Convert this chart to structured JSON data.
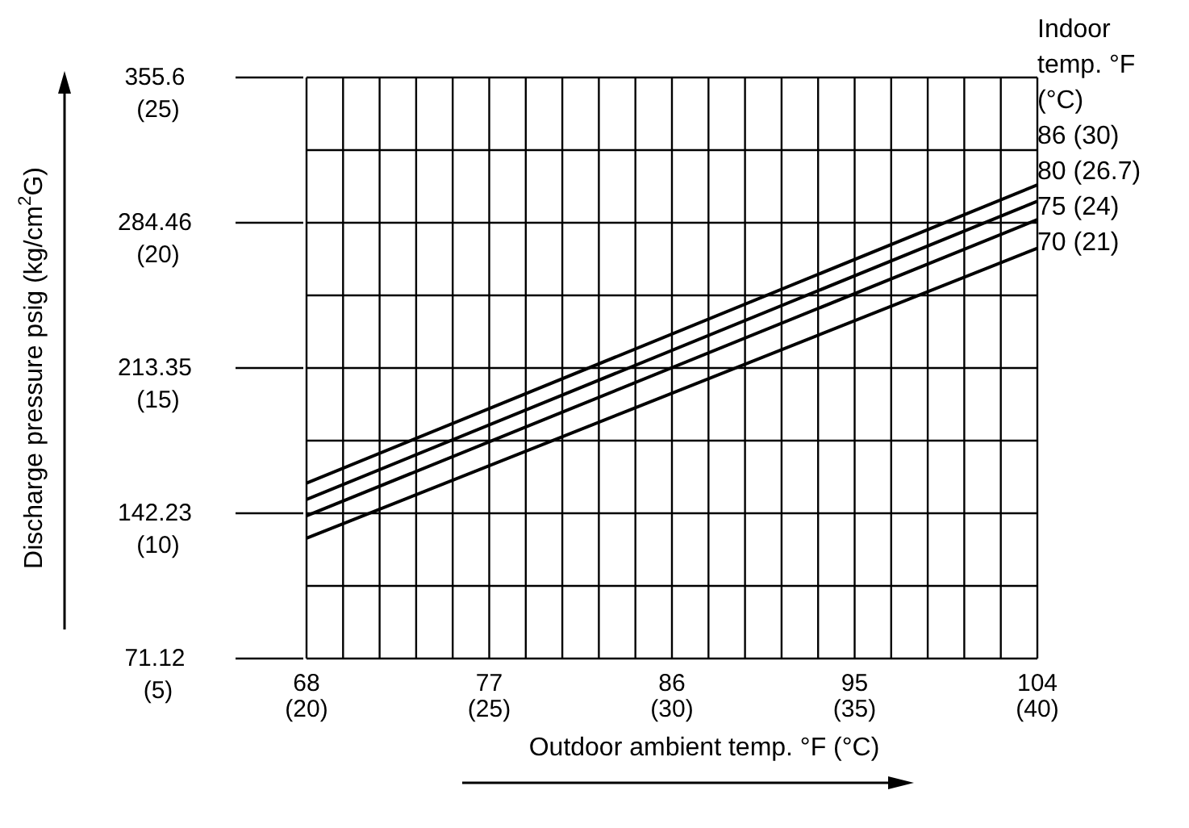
{
  "chart_data": {
    "type": "line",
    "xlabel": "Outdoor ambient temp. °F (°C)",
    "ylabel": "Discharge pressure psig (kg/cm$^{2}$G)",
    "legend_title": "Indoor temp. °F (°C)",
    "x": [
      68,
      104
    ],
    "series": [
      {
        "name": "86 (30)",
        "color": "#000000",
        "values": [
          157,
          303
        ]
      },
      {
        "name": "80 (26.7)",
        "color": "#000000",
        "values": [
          149,
          295
        ]
      },
      {
        "name": "75 (24)",
        "color": "#000000",
        "values": [
          141,
          286
        ]
      },
      {
        "name": "70 (21)",
        "color": "#000000",
        "values": [
          130,
          272
        ]
      }
    ],
    "xlim": [
      68,
      104
    ],
    "xticks": [
      68,
      {
        "value": 69.8,
        "label": null
      },
      {
        "value": 71.6,
        "label": null
      },
      {
        "value": 73.4,
        "label": null
      },
      {
        "value": 75.2,
        "label": null
      },
      77,
      {
        "value": 78.8,
        "label": null
      },
      {
        "value": 80.6,
        "label": null
      },
      {
        "value": 82.4,
        "label": null
      },
      {
        "value": 84.2,
        "label": null
      },
      86,
      {
        "value": 87.8,
        "label": null
      },
      {
        "value": 89.6,
        "label": null
      },
      {
        "value": 91.4,
        "label": null
      },
      {
        "value": 93.2,
        "label": null
      },
      95,
      {
        "value": 96.8,
        "label": null
      },
      {
        "value": 98.6,
        "label": null
      },
      {
        "value": 100.4,
        "label": null
      },
      {
        "value": 102.2,
        "label": null
      },
      104
    ],
    "x2lim": [
      20,
      40
    ],
    "x2ticks": [
      {
        "value": 20,
        "label": "(20)"
      },
      {
        "value": 25,
        "label": "(25)"
      },
      {
        "value": 30,
        "label": "(30)"
      },
      {
        "value": 35,
        "label": "(35)"
      },
      {
        "value": 40,
        "label": "(40)"
      }
    ],
    "ylim": [
      71.12,
      355.6
    ],
    "yticks": [
      71.12,
      {
        "value": 106.68,
        "label": null
      },
      142.23,
      {
        "value": 177.79,
        "label": null
      },
      213.35,
      {
        "value": 248.9,
        "label": null
      },
      284.46,
      {
        "value": 320.03,
        "label": null
      },
      355.6
    ],
    "y2lim": [
      5,
      25
    ],
    "y2ticks": [
      {
        "value": 5,
        "label": "(5)"
      },
      {
        "value": 10,
        "label": "(10)"
      },
      {
        "value": 15,
        "label": "(15)"
      },
      {
        "value": 20,
        "label": "(20)"
      },
      {
        "value": 25,
        "label": "(25)"
      }
    ],
    "grid": true,
    "legend": "right",
    "marker": "none",
    "line_style": "solid"
  }
}
